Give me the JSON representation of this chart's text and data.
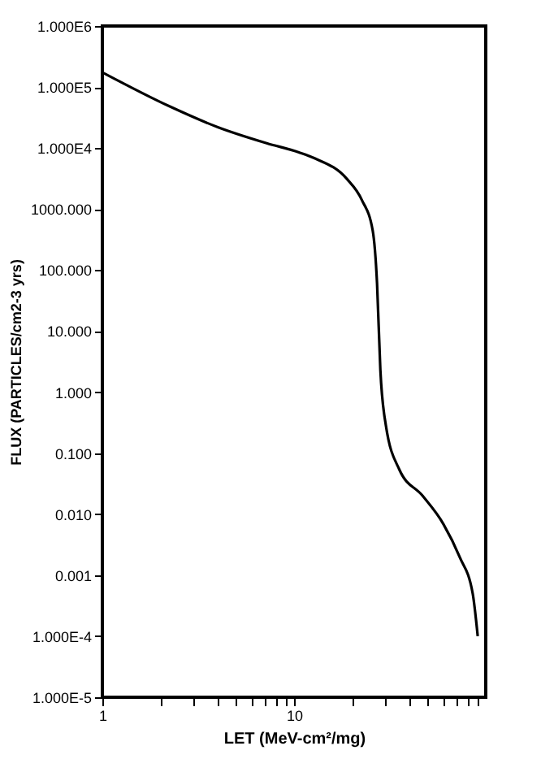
{
  "chart_data": {
    "type": "line",
    "xlabel": "LET (MeV-cm²/mg)",
    "ylabel": "FLUX (PARTICLES/cm2-3 yrs)",
    "log": "xy",
    "grid": false,
    "marker": "none",
    "line_style": "solid",
    "x": [
      1,
      2.25,
      4.0,
      7.2,
      10.6,
      12.8,
      18.9,
      22.6,
      25.7,
      27.1,
      28.2,
      30.1,
      35.4,
      46.8,
      60.1,
      73,
      85.5,
      90.8
    ],
    "series": [
      {
        "color": "#000000",
        "values": [
          174000,
          48000,
          22000,
          12000,
          8500,
          6800,
          3100,
          1400,
          450,
          60,
          2.3,
          0.29,
          0.054,
          0.02,
          0.0069,
          0.002,
          0.0005,
          0.0001
        ]
      }
    ],
    "xlim": [
      1,
      100
    ],
    "xticks": [
      1,
      {
        "value": 2,
        "label": null
      },
      {
        "value": 3,
        "label": null
      },
      {
        "value": 4,
        "label": null
      },
      {
        "value": 5,
        "label": null
      },
      {
        "value": 6,
        "label": null
      },
      {
        "value": 7,
        "label": null
      },
      {
        "value": 8,
        "label": null
      },
      {
        "value": 9,
        "label": null
      },
      10,
      {
        "value": 20,
        "label": null
      },
      {
        "value": 30,
        "label": null
      },
      {
        "value": 40,
        "label": null
      },
      {
        "value": 50,
        "label": null
      },
      {
        "value": 60,
        "label": null
      },
      {
        "value": 70,
        "label": null
      },
      {
        "value": 80,
        "label": null
      },
      {
        "value": 90,
        "label": null
      }
    ],
    "ylim": [
      1e-05,
      1000000
    ],
    "yticks": [
      {
        "value": 1000000,
        "label": "1.000E6"
      },
      {
        "value": 100000,
        "label": "1.000E5"
      },
      {
        "value": 10000,
        "label": "1.000E4"
      },
      {
        "value": 1000,
        "label": "1000.000"
      },
      {
        "value": 100,
        "label": "100.000"
      },
      {
        "value": 10,
        "label": "10.000"
      },
      {
        "value": 1,
        "label": "1.000"
      },
      {
        "value": 0.1,
        "label": "0.100"
      },
      {
        "value": 0.01,
        "label": "0.010"
      },
      {
        "value": 0.001,
        "label": "0.001"
      },
      {
        "value": 0.0001,
        "label": "1.000E-4"
      },
      {
        "value": 1e-05,
        "label": "1.000E-5"
      }
    ]
  }
}
